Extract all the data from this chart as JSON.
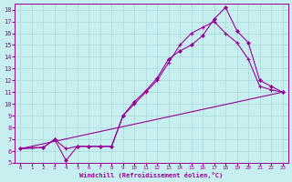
{
  "bg_color": "#c8efef",
  "grid_color": "#a8d8d8",
  "line_color": "#990099",
  "xlabel": "Windchill (Refroidissement éolien,°C)",
  "xlim_min": -0.5,
  "xlim_max": 23.5,
  "ylim_min": 5,
  "ylim_max": 18.5,
  "xticks": [
    0,
    1,
    2,
    3,
    4,
    5,
    6,
    7,
    8,
    9,
    10,
    11,
    12,
    13,
    14,
    15,
    16,
    17,
    18,
    19,
    20,
    21,
    22,
    23
  ],
  "yticks": [
    5,
    6,
    7,
    8,
    9,
    10,
    11,
    12,
    13,
    14,
    15,
    16,
    17,
    18
  ],
  "line1_x": [
    0,
    23
  ],
  "line1_y": [
    6.2,
    11.0
  ],
  "line2_x": [
    0,
    1,
    2,
    3,
    4,
    5,
    6,
    7,
    8,
    9,
    10,
    11,
    12,
    13,
    14,
    15,
    16,
    17,
    18,
    19,
    20,
    21,
    22,
    23
  ],
  "line2_y": [
    6.2,
    6.3,
    6.3,
    7.0,
    6.2,
    6.4,
    6.4,
    6.4,
    6.4,
    9.0,
    10.0,
    11.0,
    12.0,
    13.5,
    15.0,
    16.0,
    16.5,
    17.0,
    16.0,
    15.2,
    13.8,
    11.5,
    11.2,
    11.0
  ],
  "line3_x": [
    0,
    2,
    3,
    4,
    5,
    6,
    7,
    8,
    9,
    10,
    11,
    12,
    13,
    14,
    15,
    16,
    17,
    18,
    19,
    20,
    21,
    22,
    23
  ],
  "line3_y": [
    6.2,
    6.3,
    7.0,
    5.2,
    6.4,
    6.4,
    6.4,
    6.4,
    9.0,
    10.2,
    11.1,
    12.2,
    13.8,
    14.5,
    15.0,
    15.8,
    17.2,
    18.2,
    16.2,
    15.2,
    12.0,
    11.5,
    11.0
  ]
}
